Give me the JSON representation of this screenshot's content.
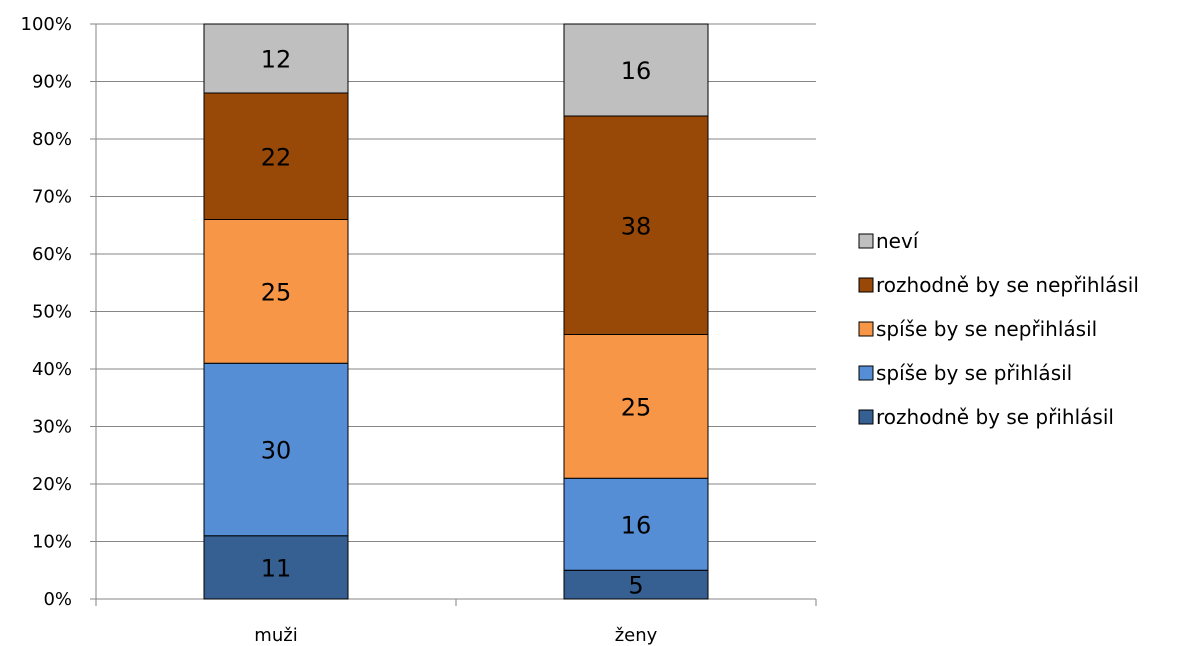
{
  "chart_data": {
    "type": "bar",
    "stacked": true,
    "percent_stacked": true,
    "categories": [
      "muži",
      "ženy"
    ],
    "series": [
      {
        "name": "rozhodně by se přihlásil",
        "values": [
          11,
          5
        ],
        "color": "#376092"
      },
      {
        "name": "spíše by se přihlásil",
        "values": [
          30,
          16
        ],
        "color": "#558ED5"
      },
      {
        "name": "spíše by se nepřihlásil",
        "values": [
          25,
          25
        ],
        "color": "#F79646"
      },
      {
        "name": "rozhodně by se nepřihlásil",
        "values": [
          22,
          38
        ],
        "color": "#984807"
      },
      {
        "name": "neví",
        "values": [
          12,
          16
        ],
        "color": "#BFBFBF"
      }
    ],
    "ylim": [
      0,
      100
    ],
    "yticks": [
      "0%",
      "10%",
      "20%",
      "30%",
      "40%",
      "50%",
      "60%",
      "70%",
      "80%",
      "90%",
      "100%"
    ],
    "grid": true,
    "legend_position": "right",
    "title": "",
    "xlabel": "",
    "ylabel": ""
  }
}
